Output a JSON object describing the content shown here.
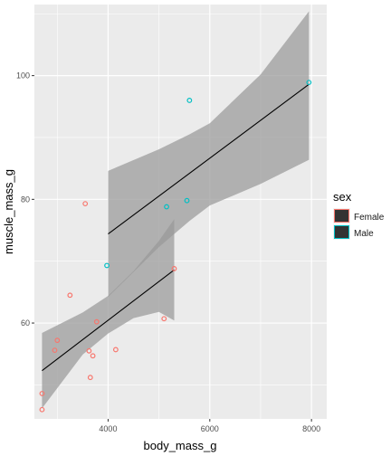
{
  "chart_data": {
    "type": "scatter",
    "title": "",
    "xlabel": "body_mass_g",
    "ylabel": "muscle_mass_g",
    "xlim": [
      2550,
      8300
    ],
    "ylim": [
      44.5,
      111.5
    ],
    "x_ticks": [
      4000,
      6000,
      8000
    ],
    "y_ticks": [
      60,
      80,
      100
    ],
    "grid": true,
    "legend": {
      "title": "sex",
      "position": "right",
      "entries": [
        {
          "label": "Female",
          "color": "#F8766D"
        },
        {
          "label": "Male",
          "color": "#00BFC4"
        }
      ]
    },
    "series": [
      {
        "name": "Female",
        "color": "#F8766D",
        "points": [
          [
            2700,
            48.6
          ],
          [
            2700,
            46.0
          ],
          [
            2950,
            55.6
          ],
          [
            3000,
            57.2
          ],
          [
            3250,
            64.5
          ],
          [
            3550,
            79.3
          ],
          [
            3625,
            55.5
          ],
          [
            3650,
            51.2
          ],
          [
            3700,
            54.7
          ],
          [
            3775,
            60.2
          ],
          [
            4150,
            55.7
          ],
          [
            5100,
            60.7
          ],
          [
            5300,
            68.8
          ]
        ],
        "fit_line": [
          [
            2700,
            52.3
          ],
          [
            5300,
            68.6
          ]
        ],
        "ci_band": {
          "x": [
            2700,
            3500,
            4000,
            4500,
            5000,
            5300
          ],
          "upper": [
            58.4,
            61.7,
            64.4,
            68.4,
            73.3,
            76.8
          ],
          "lower": [
            46.2,
            54.9,
            58.3,
            60.8,
            61.8,
            60.4
          ]
        }
      },
      {
        "name": "Male",
        "color": "#00BFC4",
        "points": [
          [
            3975,
            69.3
          ],
          [
            5150,
            78.8
          ],
          [
            5550,
            79.8
          ],
          [
            5600,
            96.0
          ],
          [
            7950,
            98.9
          ]
        ],
        "fit_line": [
          [
            4000,
            74.4
          ],
          [
            7950,
            98.6
          ]
        ],
        "ci_band": {
          "x": [
            4000,
            5000,
            5600,
            6000,
            7000,
            7950
          ],
          "upper": [
            84.6,
            88.1,
            90.5,
            92.3,
            100.2,
            110.4
          ],
          "lower": [
            64.2,
            72.3,
            76.5,
            79.0,
            82.5,
            86.4
          ]
        }
      }
    ]
  }
}
